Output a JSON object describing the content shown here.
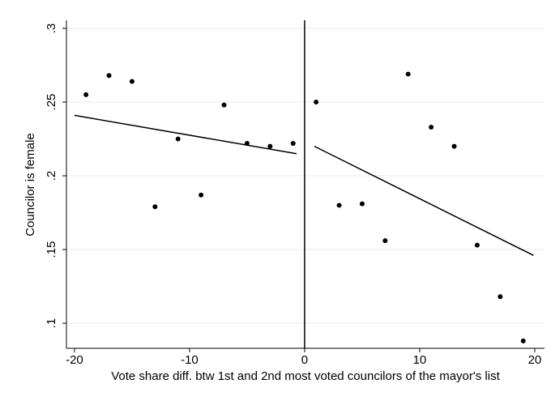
{
  "chart_data": {
    "type": "scatter",
    "x_label": "Vote share diff. btw 1st and 2nd most voted councilors of the mayor's list",
    "y_label": "Councilor is female",
    "xlim": [
      -20.7,
      20.85
    ],
    "ylim": [
      0.083,
      0.3055
    ],
    "xticks": [
      -20,
      -10,
      0,
      10,
      20
    ],
    "yticks": [
      {
        "value": 0.1,
        "label": ".1"
      },
      {
        "value": 0.15,
        "label": ".15"
      },
      {
        "value": 0.2,
        "label": ".2"
      },
      {
        "value": 0.25,
        "label": ".25"
      },
      {
        "value": 0.3,
        "label": ".3"
      }
    ],
    "grid": true,
    "cutoff": 0,
    "points": {
      "color": "#000000",
      "x": [
        -19,
        -17,
        -15,
        -13,
        -11,
        -9,
        -7,
        -5,
        -3,
        -1,
        1,
        3,
        5,
        7,
        9,
        11,
        13,
        15,
        17,
        19
      ],
      "values": [
        0.255,
        0.268,
        0.264,
        0.179,
        0.225,
        0.187,
        0.248,
        0.222,
        0.22,
        0.222,
        0.25,
        0.18,
        0.181,
        0.156,
        0.269,
        0.233,
        0.22,
        0.153,
        0.118,
        0.088
      ]
    },
    "fit_lines": [
      {
        "color": "#000000",
        "x": [
          -20,
          -0.7
        ],
        "values": [
          0.241,
          0.215
        ]
      },
      {
        "color": "#000000",
        "x": [
          0.85,
          19.9
        ],
        "values": [
          0.22,
          0.146
        ]
      }
    ]
  }
}
